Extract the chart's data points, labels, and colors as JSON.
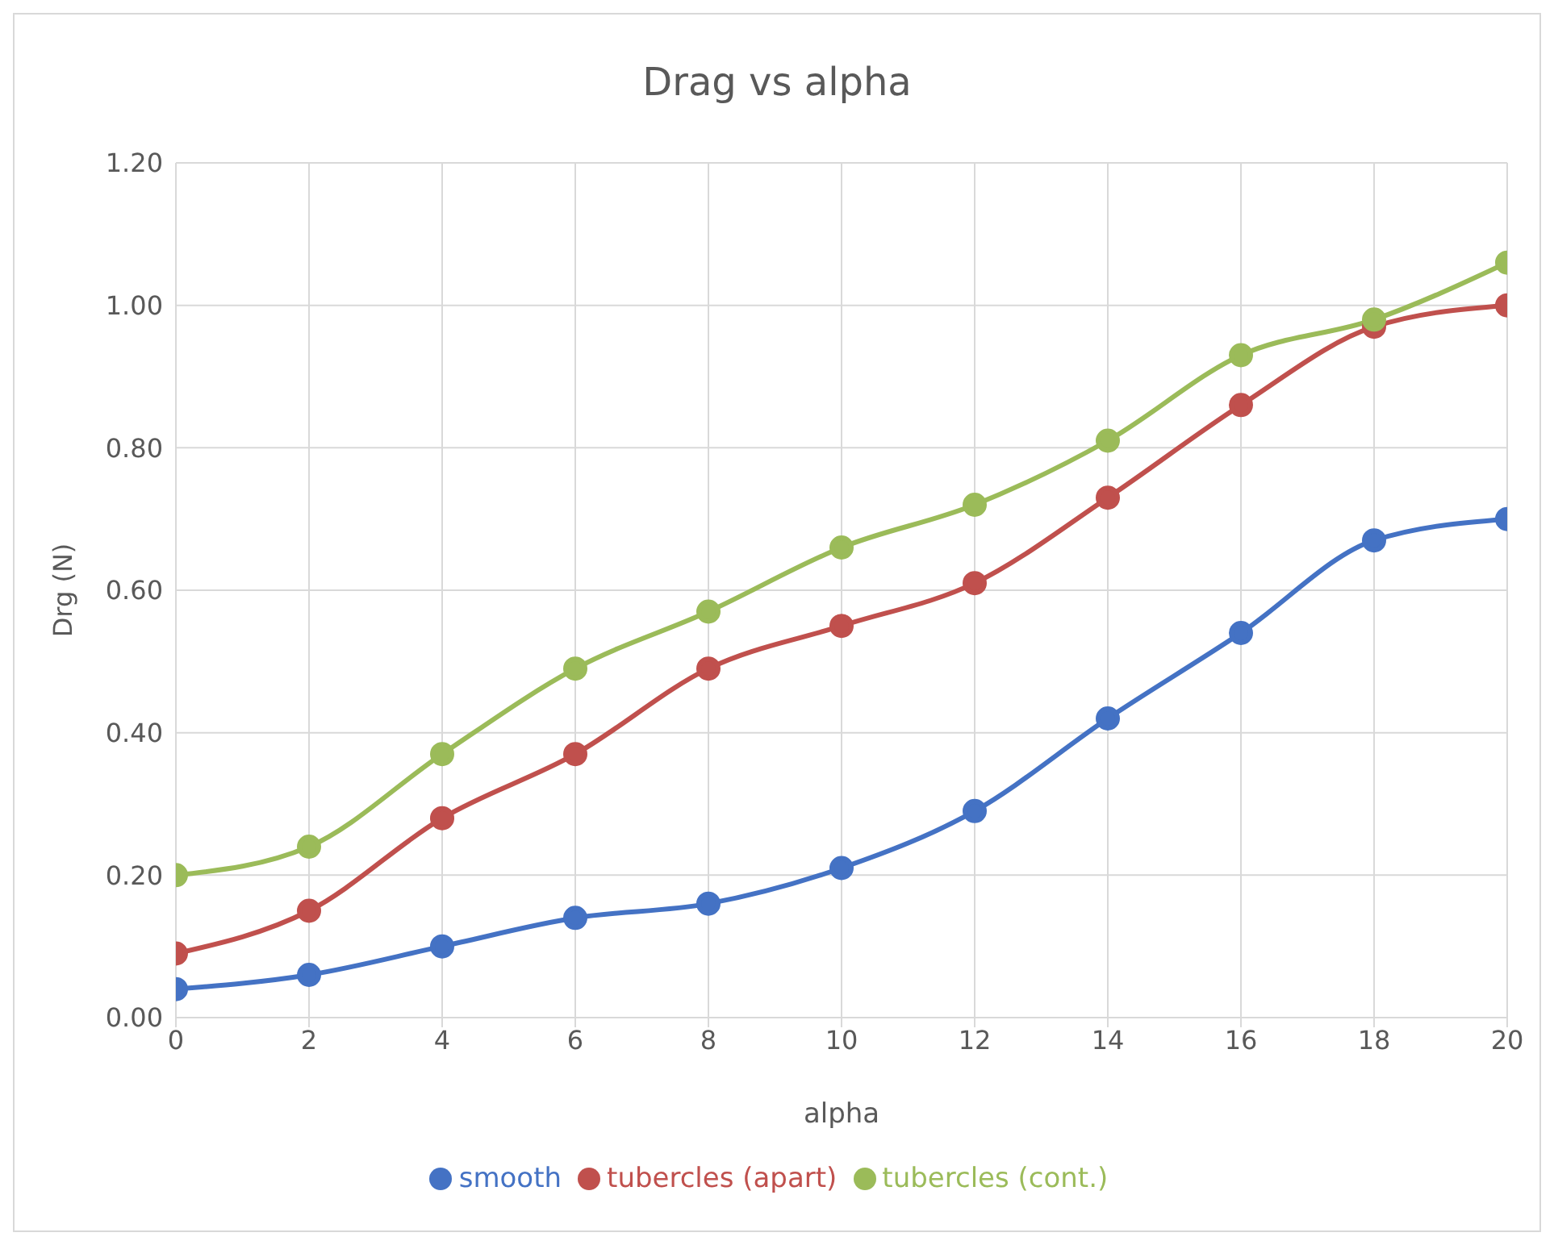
{
  "chart_data": {
    "type": "line",
    "title": "Drag vs alpha",
    "xlabel": "alpha",
    "ylabel": "Drg (N)",
    "x": [
      0,
      2,
      4,
      6,
      8,
      10,
      12,
      14,
      16,
      18,
      20
    ],
    "series": [
      {
        "name": "smooth",
        "color": "#4472c4",
        "values": [
          0.04,
          0.06,
          0.1,
          0.14,
          0.16,
          0.21,
          0.29,
          0.42,
          0.54,
          0.67,
          0.7
        ]
      },
      {
        "name": "tubercles (apart)",
        "color": "#c0504d",
        "values": [
          0.09,
          0.15,
          0.28,
          0.37,
          0.49,
          0.55,
          0.61,
          0.73,
          0.86,
          0.97,
          1.0
        ]
      },
      {
        "name": "tubercles (cont.)",
        "color": "#9bbb59",
        "values": [
          0.2,
          0.24,
          0.37,
          0.49,
          0.57,
          0.66,
          0.72,
          0.81,
          0.93,
          0.98,
          1.06
        ]
      }
    ],
    "xlim": [
      0,
      20
    ],
    "xticks": [
      0,
      2,
      4,
      6,
      8,
      10,
      12,
      14,
      16,
      18,
      20
    ],
    "ylim": [
      0,
      1.2
    ],
    "yticks": [
      {
        "value": 0,
        "label": "0.00"
      },
      {
        "value": 0.2,
        "label": "0.20"
      },
      {
        "value": 0.4,
        "label": "0.40"
      },
      {
        "value": 0.6,
        "label": "0.60"
      },
      {
        "value": 0.8,
        "label": "0.80"
      },
      {
        "value": 1.0,
        "label": "1.00"
      },
      {
        "value": 1.2,
        "label": "1.20"
      }
    ],
    "grid": true,
    "legend": "bottom",
    "marker": "circle",
    "line_style": "solid"
  }
}
